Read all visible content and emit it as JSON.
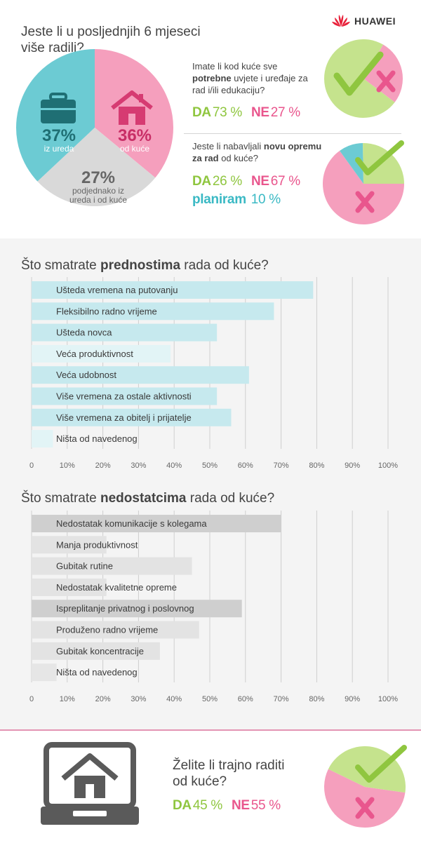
{
  "brand": "HUAWEI",
  "colors": {
    "teal": "#6ccbd3",
    "pink": "#f59fbd",
    "grey": "#d9d9d9",
    "green": "#c5e38d",
    "check": "#8fc63f",
    "cross": "#e9568d",
    "benefit_bar": "#c6e9ee",
    "drawback_bar": "#e3e3e3"
  },
  "q1": {
    "title": "Jeste li u posljednjih 6 mjeseci više radili?",
    "icons": [
      "briefcase-icon",
      "house-icon"
    ],
    "slices": [
      {
        "pct": "37%",
        "label": "iz ureda",
        "value": 37
      },
      {
        "pct": "36%",
        "label": "od kuće",
        "value": 36
      },
      {
        "pct": "27%",
        "label1": "podjednako iz",
        "label2": "ureda i od kuće",
        "value": 27
      }
    ]
  },
  "q2": {
    "text_normal1": "Imate li kod kuće sve ",
    "text_bold": "potrebne",
    "text_normal2": " uvjete i uređaje za rad i/ili edukaciju?",
    "yes_label": "DA",
    "yes_value": "73 %",
    "no_label": "NE",
    "no_value": "27 %",
    "yes": 73,
    "no": 27
  },
  "q3": {
    "text_normal1": "Jeste li nabavljali ",
    "text_bold1": "novu opremu za rad",
    "text_normal2": " od kuće?",
    "yes_label": "DA",
    "yes_value": "26 %",
    "no_label": "NE",
    "no_value": "67 %",
    "plan_label": "planiram",
    "plan_value": "10 %",
    "yes": 26,
    "no": 67,
    "plan": 10
  },
  "benefits": {
    "title_pre": "Što smatrate ",
    "title_bold": "prednostima",
    "title_post": " rada od kuće?"
  },
  "drawbacks": {
    "title_pre": "Što smatrate ",
    "title_bold": "nedostatcima",
    "title_post": " rada od kuće?"
  },
  "q4": {
    "text": "Želite li trajno raditi od kuće?",
    "yes_label": "DA",
    "yes_value": "45 %",
    "no_label": "NE",
    "no_value": "55 %",
    "yes": 45,
    "no": 55
  },
  "chart_data": [
    {
      "type": "bar",
      "orientation": "horizontal",
      "title": "Što smatrate prednostima rada od kuće?",
      "categories": [
        "Ušteda vremena na putovanju",
        "Fleksibilno radno vrijeme",
        "Ušteda novca",
        "Veća produktivnost",
        "Veća udobnost",
        "Više vremena za ostale aktivnosti",
        "Više vremena za obitelj i prijatelje",
        "Ništa od navedenog"
      ],
      "values": [
        79,
        68,
        52,
        39,
        61,
        52,
        56,
        6
      ],
      "xlim": [
        0,
        100
      ],
      "ticks": [
        "0",
        "10%",
        "20%",
        "30%",
        "40%",
        "50%",
        "60%",
        "70%",
        "80%",
        "90%",
        "100%"
      ],
      "grid": true
    },
    {
      "type": "bar",
      "orientation": "horizontal",
      "title": "Što smatrate nedostatcima rada od kuće?",
      "categories": [
        "Nedostatak komunikacije s kolegama",
        "Manja produktivnost",
        "Gubitak rutine",
        "Nedostatak kvalitetne opreme",
        "Ispreplitanje privatnog i poslovnog",
        "Produženo radno vrijeme",
        "Gubitak koncentracije",
        "Ništa od navedenog"
      ],
      "values": [
        70,
        21,
        45,
        21,
        59,
        47,
        36,
        7
      ],
      "highlight": [
        true,
        false,
        false,
        false,
        true,
        false,
        false,
        false
      ],
      "xlim": [
        0,
        100
      ],
      "ticks": [
        "0",
        "10%",
        "20%",
        "30%",
        "40%",
        "50%",
        "60%",
        "70%",
        "80%",
        "90%",
        "100%"
      ],
      "grid": true
    }
  ]
}
